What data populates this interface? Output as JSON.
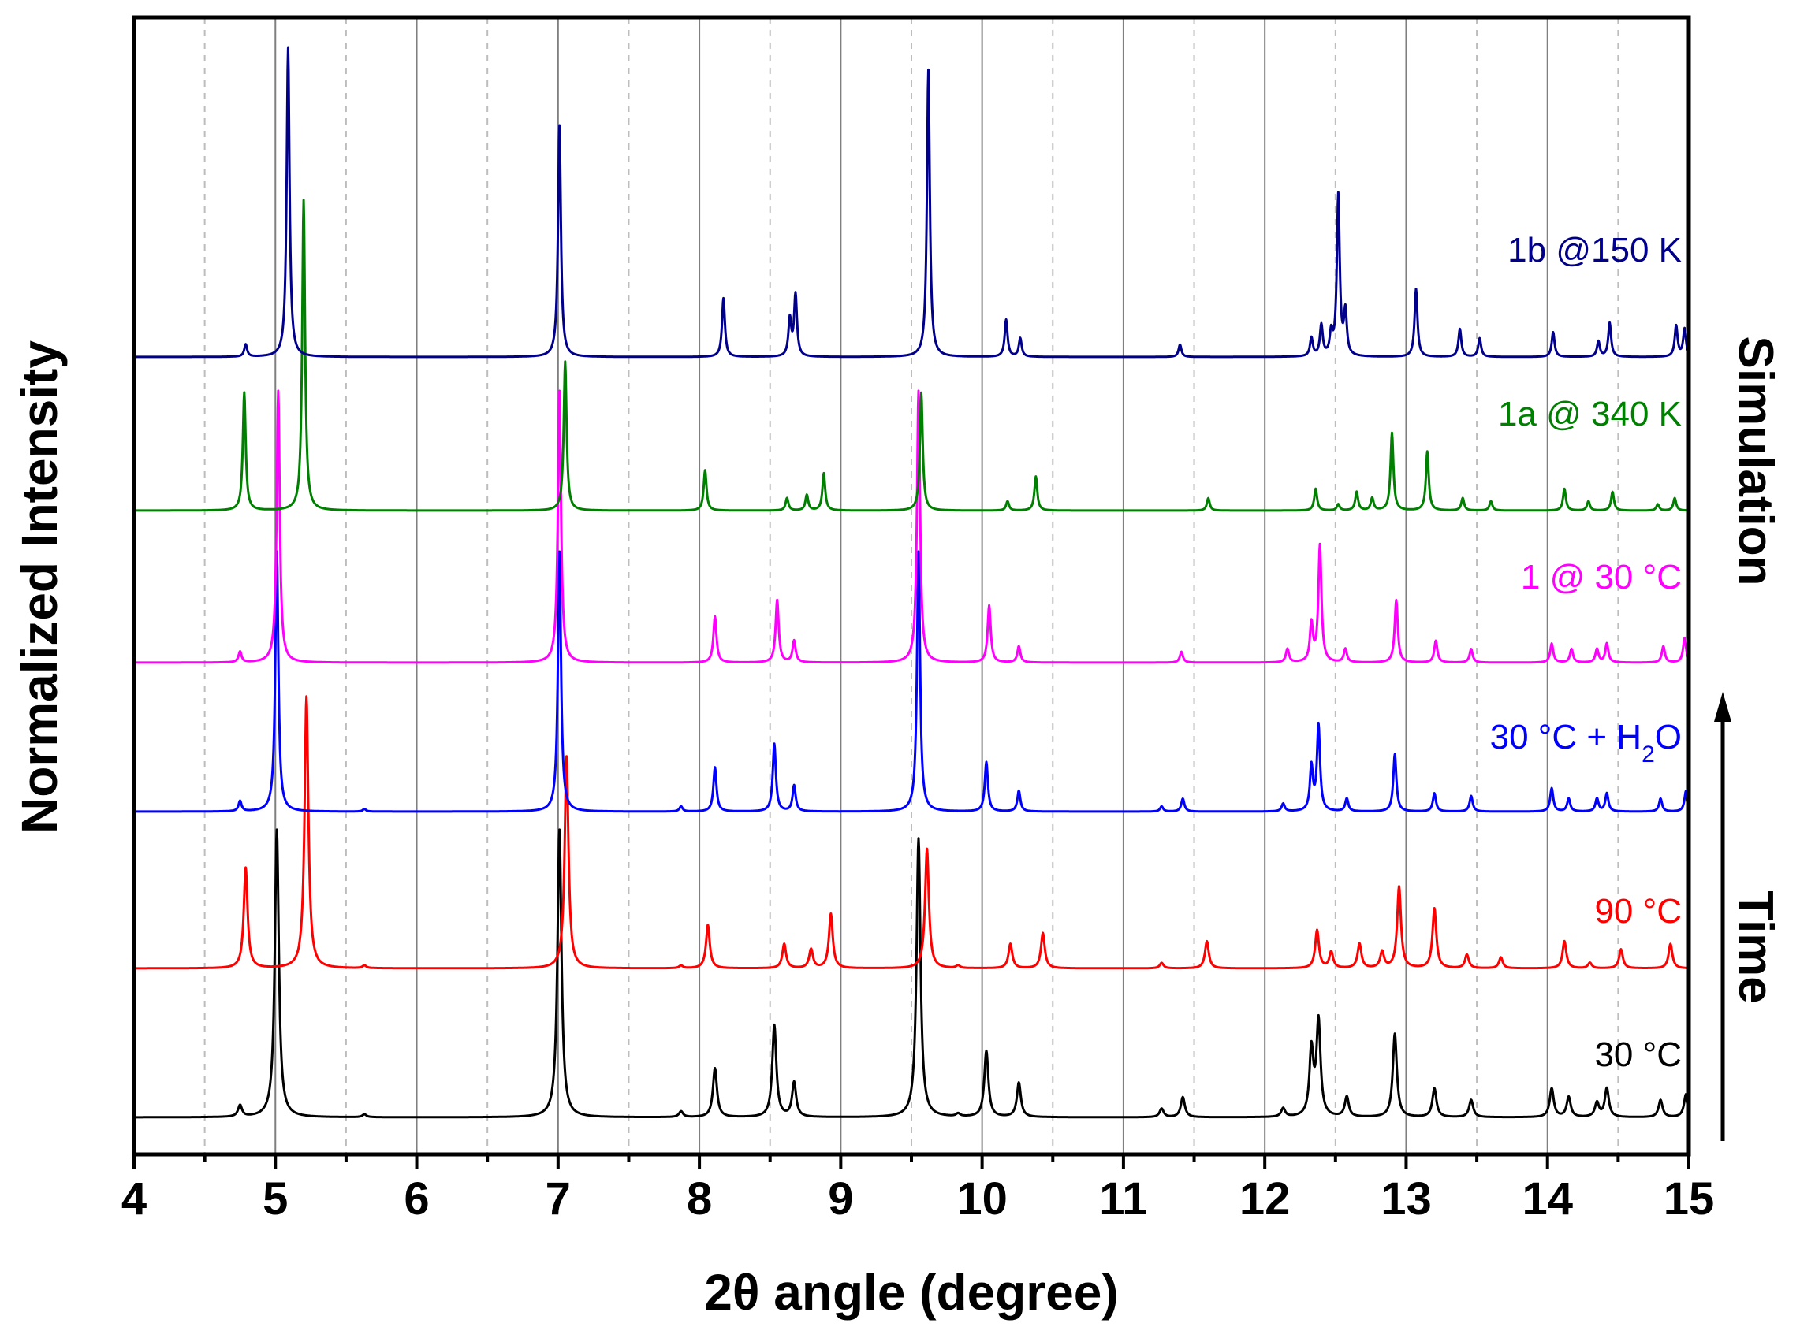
{
  "chart_data": {
    "type": "line",
    "xlabel": "2θ angle (degree)",
    "ylabel": "Normalized Intensity",
    "xlim": [
      4,
      15
    ],
    "xticks": [
      4,
      5,
      6,
      7,
      8,
      9,
      10,
      11,
      12,
      13,
      14,
      15
    ],
    "grid": {
      "major_x": true,
      "minor_x_dashed": true
    },
    "side_labels": {
      "top": "Simulation",
      "bottom": "Time"
    },
    "series": [
      {
        "name": "30 °C",
        "color": "#000000",
        "peaks": [
          [
            4.75,
            0.04
          ],
          [
            5.01,
            1.0
          ],
          [
            5.63,
            0.01
          ],
          [
            7.01,
            1.0
          ],
          [
            7.87,
            0.02
          ],
          [
            8.11,
            0.17
          ],
          [
            8.53,
            0.32
          ],
          [
            8.67,
            0.12
          ],
          [
            9.55,
            0.97
          ],
          [
            9.83,
            0.01
          ],
          [
            10.03,
            0.23
          ],
          [
            10.26,
            0.12
          ],
          [
            11.27,
            0.03
          ],
          [
            11.42,
            0.07
          ],
          [
            12.13,
            0.03
          ],
          [
            12.33,
            0.23
          ],
          [
            12.38,
            0.33
          ],
          [
            12.58,
            0.07
          ],
          [
            12.92,
            0.29
          ],
          [
            13.2,
            0.1
          ],
          [
            13.46,
            0.06
          ],
          [
            14.03,
            0.1
          ],
          [
            14.15,
            0.07
          ],
          [
            14.35,
            0.05
          ],
          [
            14.42,
            0.1
          ],
          [
            14.8,
            0.06
          ],
          [
            14.98,
            0.08
          ]
        ]
      },
      {
        "name": "90 °C",
        "color": "#ff0000",
        "peaks": [
          [
            4.79,
            0.37
          ],
          [
            5.22,
            1.0
          ],
          [
            5.63,
            0.01
          ],
          [
            7.06,
            0.78
          ],
          [
            7.87,
            0.01
          ],
          [
            8.06,
            0.16
          ],
          [
            8.6,
            0.09
          ],
          [
            8.79,
            0.07
          ],
          [
            8.93,
            0.2
          ],
          [
            9.61,
            0.44
          ],
          [
            9.83,
            0.01
          ],
          [
            10.2,
            0.09
          ],
          [
            10.43,
            0.13
          ],
          [
            11.27,
            0.02
          ],
          [
            11.59,
            0.1
          ],
          [
            12.37,
            0.14
          ],
          [
            12.47,
            0.06
          ],
          [
            12.67,
            0.09
          ],
          [
            12.83,
            0.06
          ],
          [
            12.95,
            0.3
          ],
          [
            13.2,
            0.22
          ],
          [
            13.43,
            0.05
          ],
          [
            13.67,
            0.04
          ],
          [
            14.12,
            0.1
          ],
          [
            14.3,
            0.02
          ],
          [
            14.52,
            0.07
          ],
          [
            14.87,
            0.09
          ]
        ]
      },
      {
        "name": "30 °C + H2O",
        "color": "#0000ff",
        "peaks": [
          [
            4.75,
            0.04
          ],
          [
            5.01,
            1.0
          ],
          [
            5.63,
            0.01
          ],
          [
            7.01,
            1.0
          ],
          [
            7.87,
            0.02
          ],
          [
            8.11,
            0.17
          ],
          [
            8.53,
            0.26
          ],
          [
            8.67,
            0.1
          ],
          [
            9.55,
            1.0
          ],
          [
            10.03,
            0.19
          ],
          [
            10.26,
            0.08
          ],
          [
            11.27,
            0.02
          ],
          [
            11.42,
            0.05
          ],
          [
            12.13,
            0.03
          ],
          [
            12.33,
            0.17
          ],
          [
            12.38,
            0.33
          ],
          [
            12.58,
            0.05
          ],
          [
            12.92,
            0.22
          ],
          [
            13.2,
            0.07
          ],
          [
            13.46,
            0.06
          ],
          [
            14.03,
            0.09
          ],
          [
            14.15,
            0.05
          ],
          [
            14.35,
            0.05
          ],
          [
            14.42,
            0.07
          ],
          [
            14.8,
            0.05
          ],
          [
            14.98,
            0.08
          ]
        ]
      },
      {
        "name": "1 @ 30 °C",
        "color": "#ff00ff",
        "peaks": [
          [
            4.75,
            0.04
          ],
          [
            5.02,
            1.0
          ],
          [
            7.01,
            1.0
          ],
          [
            8.11,
            0.17
          ],
          [
            8.55,
            0.23
          ],
          [
            8.67,
            0.08
          ],
          [
            9.55,
            1.0
          ],
          [
            10.05,
            0.21
          ],
          [
            10.26,
            0.06
          ],
          [
            11.41,
            0.04
          ],
          [
            12.16,
            0.05
          ],
          [
            12.33,
            0.14
          ],
          [
            12.39,
            0.43
          ],
          [
            12.57,
            0.05
          ],
          [
            12.93,
            0.23
          ],
          [
            13.21,
            0.08
          ],
          [
            13.46,
            0.05
          ],
          [
            14.03,
            0.07
          ],
          [
            14.17,
            0.05
          ],
          [
            14.35,
            0.05
          ],
          [
            14.42,
            0.07
          ],
          [
            14.82,
            0.06
          ],
          [
            14.97,
            0.09
          ]
        ]
      },
      {
        "name": "1a @ 340 K",
        "color": "#008000",
        "peaks": [
          [
            4.78,
            0.38
          ],
          [
            5.2,
            1.0
          ],
          [
            7.05,
            0.48
          ],
          [
            8.04,
            0.13
          ],
          [
            8.62,
            0.04
          ],
          [
            8.76,
            0.05
          ],
          [
            8.88,
            0.12
          ],
          [
            9.57,
            0.38
          ],
          [
            10.18,
            0.03
          ],
          [
            10.38,
            0.11
          ],
          [
            11.6,
            0.04
          ],
          [
            12.36,
            0.07
          ],
          [
            12.52,
            0.02
          ],
          [
            12.65,
            0.06
          ],
          [
            12.76,
            0.04
          ],
          [
            12.9,
            0.25
          ],
          [
            13.15,
            0.19
          ],
          [
            13.4,
            0.04
          ],
          [
            13.6,
            0.03
          ],
          [
            14.12,
            0.07
          ],
          [
            14.29,
            0.03
          ],
          [
            14.46,
            0.06
          ],
          [
            14.78,
            0.02
          ],
          [
            14.9,
            0.04
          ]
        ]
      },
      {
        "name": "1b @150 K",
        "color": "#00008b",
        "peaks": [
          [
            4.79,
            0.04
          ],
          [
            5.09,
            1.0
          ],
          [
            7.01,
            0.75
          ],
          [
            8.17,
            0.19
          ],
          [
            8.64,
            0.12
          ],
          [
            8.68,
            0.2
          ],
          [
            9.62,
            0.93
          ],
          [
            10.17,
            0.12
          ],
          [
            10.27,
            0.06
          ],
          [
            11.4,
            0.04
          ],
          [
            12.33,
            0.06
          ],
          [
            12.4,
            0.1
          ],
          [
            12.47,
            0.07
          ],
          [
            12.52,
            0.52
          ],
          [
            12.57,
            0.14
          ],
          [
            13.07,
            0.22
          ],
          [
            13.38,
            0.09
          ],
          [
            13.52,
            0.06
          ],
          [
            14.04,
            0.08
          ],
          [
            14.36,
            0.05
          ],
          [
            14.44,
            0.11
          ],
          [
            14.91,
            0.1
          ],
          [
            14.97,
            0.09
          ]
        ]
      }
    ]
  }
}
